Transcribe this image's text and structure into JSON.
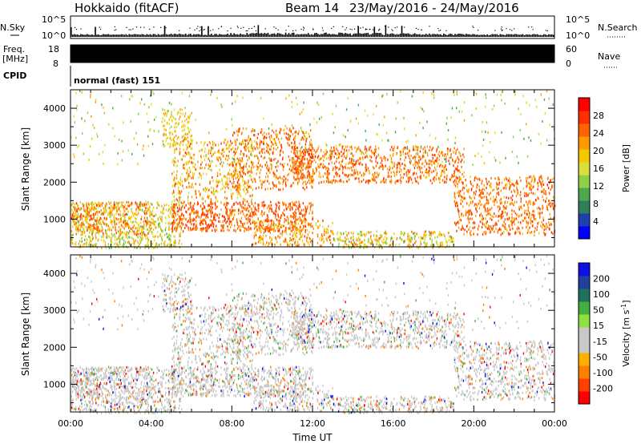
{
  "header": {
    "site": "Hokkaido (fitACF)",
    "beam": "Beam 14",
    "dates": "23/May/2016 - 24/May/2016"
  },
  "noise": {
    "left_label": "N.Sky",
    "right_label": "N.Search",
    "ticks": [
      "10^5",
      "10^0"
    ]
  },
  "freq": {
    "left_label_1": "Freq.",
    "left_label_2": "[MHz]",
    "left_ticks": [
      "18",
      "8"
    ],
    "right_label": "Nave",
    "right_ticks": [
      "60",
      "0"
    ]
  },
  "cpid": {
    "label": "CPID",
    "program": "normal (fast) 151"
  },
  "chart_data": [
    {
      "type": "heatmap",
      "name": "power",
      "ylabel": "Slant Range [km]",
      "x_ticks": [
        "00:00",
        "04:00",
        "08:00",
        "12:00",
        "16:00",
        "20:00",
        "00:00"
      ],
      "y_ticks": [
        1000,
        2000,
        3000,
        4000
      ],
      "ylim": [
        250,
        4500
      ],
      "xlim_hours": [
        0,
        24
      ],
      "colorbar": {
        "label": "Power [dB]",
        "ticks": [
          "28",
          "24",
          "20",
          "16",
          "12",
          "8",
          "4"
        ],
        "colors": [
          "#0000ff",
          "#1f3fb0",
          "#2e7f5a",
          "#4ea84f",
          "#8fd048",
          "#d8e040",
          "#f5c800",
          "#ff9a00",
          "#ff6400",
          "#ff3000",
          "#ff0000"
        ]
      }
    },
    {
      "type": "heatmap",
      "name": "velocity",
      "ylabel": "Slant Range [km]",
      "x_ticks": [
        "00:00",
        "04:00",
        "08:00",
        "12:00",
        "16:00",
        "20:00",
        "00:00"
      ],
      "y_ticks": [
        1000,
        2000,
        3000,
        4000
      ],
      "ylim": [
        250,
        4500
      ],
      "xlim_hours": [
        0,
        24
      ],
      "xlabel": "Time UT",
      "colorbar": {
        "label": "Velocity [m s",
        "label_sup": "-1",
        "label_end": "]",
        "ticks": [
          "200",
          "100",
          "50",
          "15",
          "-15",
          "-50",
          "-100",
          "-200"
        ],
        "colors": [
          "#ff0000",
          "#ff4000",
          "#ff8000",
          "#ffb000",
          "#c8c8c8",
          "#c8c8c8",
          "#90e040",
          "#40b040",
          "#207060",
          "#2040a0",
          "#1010e0"
        ]
      }
    }
  ]
}
